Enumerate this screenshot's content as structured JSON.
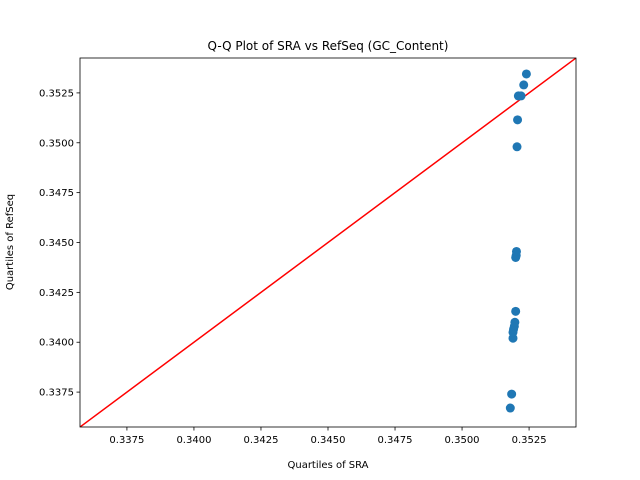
{
  "chart_data": {
    "type": "scatter",
    "title": "Q-Q Plot of SRA vs RefSeq (GC_Content)",
    "xlabel": "Quartiles of SRA",
    "ylabel": "Quartiles of RefSeq",
    "xlim": [
      0.33575,
      0.35425
    ],
    "ylim": [
      0.33575,
      0.35425
    ],
    "grid": false,
    "x_ticks": [
      0.3375,
      0.34,
      0.3425,
      0.345,
      0.3475,
      0.35,
      0.3525
    ],
    "x_tick_labels": [
      "0.3375",
      "0.3400",
      "0.3425",
      "0.3450",
      "0.3475",
      "0.3500",
      "0.3525"
    ],
    "y_ticks": [
      0.3375,
      0.34,
      0.3425,
      0.345,
      0.3475,
      0.35,
      0.3525
    ],
    "y_tick_labels": [
      "0.3375",
      "0.3400",
      "0.3425",
      "0.3450",
      "0.3475",
      "0.3500",
      "0.3525"
    ],
    "reference_line": {
      "type": "y=x",
      "color": "#ff0000"
    },
    "marker_color": "#1f77b4",
    "points": [
      {
        "x": 0.3518,
        "y": 0.3367
      },
      {
        "x": 0.35185,
        "y": 0.3374
      },
      {
        "x": 0.3519,
        "y": 0.3402
      },
      {
        "x": 0.3519,
        "y": 0.3405
      },
      {
        "x": 0.35192,
        "y": 0.34065
      },
      {
        "x": 0.35195,
        "y": 0.3408
      },
      {
        "x": 0.35197,
        "y": 0.341
      },
      {
        "x": 0.352,
        "y": 0.34155
      },
      {
        "x": 0.352,
        "y": 0.34425
      },
      {
        "x": 0.35202,
        "y": 0.34435
      },
      {
        "x": 0.35203,
        "y": 0.34455
      },
      {
        "x": 0.35205,
        "y": 0.3498
      },
      {
        "x": 0.35207,
        "y": 0.35115
      },
      {
        "x": 0.3521,
        "y": 0.35235
      },
      {
        "x": 0.3522,
        "y": 0.35235
      },
      {
        "x": 0.3523,
        "y": 0.3529
      },
      {
        "x": 0.3524,
        "y": 0.35345
      }
    ]
  }
}
